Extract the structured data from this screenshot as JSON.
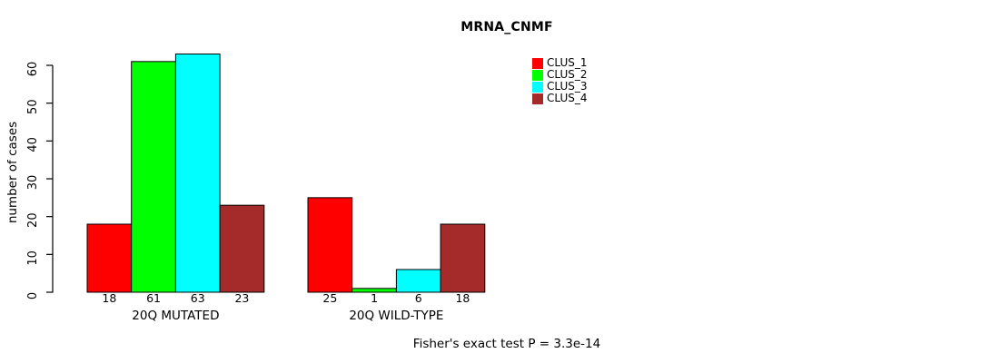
{
  "chart": {
    "title": "MRNA_CNMF",
    "ylabel": "number of cases",
    "caption": "Fisher's exact test P = 3.3e-14"
  },
  "legend": {
    "entries": [
      {
        "label": "CLUS_1",
        "color": "#FF0000"
      },
      {
        "label": "CLUS_2",
        "color": "#00FF00"
      },
      {
        "label": "CLUS_3",
        "color": "#00FFFF"
      },
      {
        "label": "CLUS_4",
        "color": "#A52A2A"
      }
    ]
  },
  "chart_data": {
    "type": "bar",
    "title": "MRNA_CNMF",
    "xlabel": "",
    "ylabel": "number of cases",
    "categories": [
      "20Q MUTATED",
      "20Q WILD-TYPE"
    ],
    "series": [
      {
        "name": "CLUS_1",
        "color": "#FF0000",
        "values": [
          18,
          25
        ]
      },
      {
        "name": "CLUS_2",
        "color": "#00FF00",
        "values": [
          61,
          1
        ]
      },
      {
        "name": "CLUS_3",
        "color": "#00FFFF",
        "values": [
          63,
          6
        ]
      },
      {
        "name": "CLUS_4",
        "color": "#A52A2A",
        "values": [
          23,
          18
        ]
      }
    ],
    "yticks": [
      0,
      10,
      20,
      30,
      40,
      50,
      60
    ],
    "ylim": [
      0,
      63
    ],
    "grid": false,
    "bar_value_labels": true,
    "legend_position": "top-right",
    "annotation": "Fisher's exact test P = 3.3e-14"
  }
}
